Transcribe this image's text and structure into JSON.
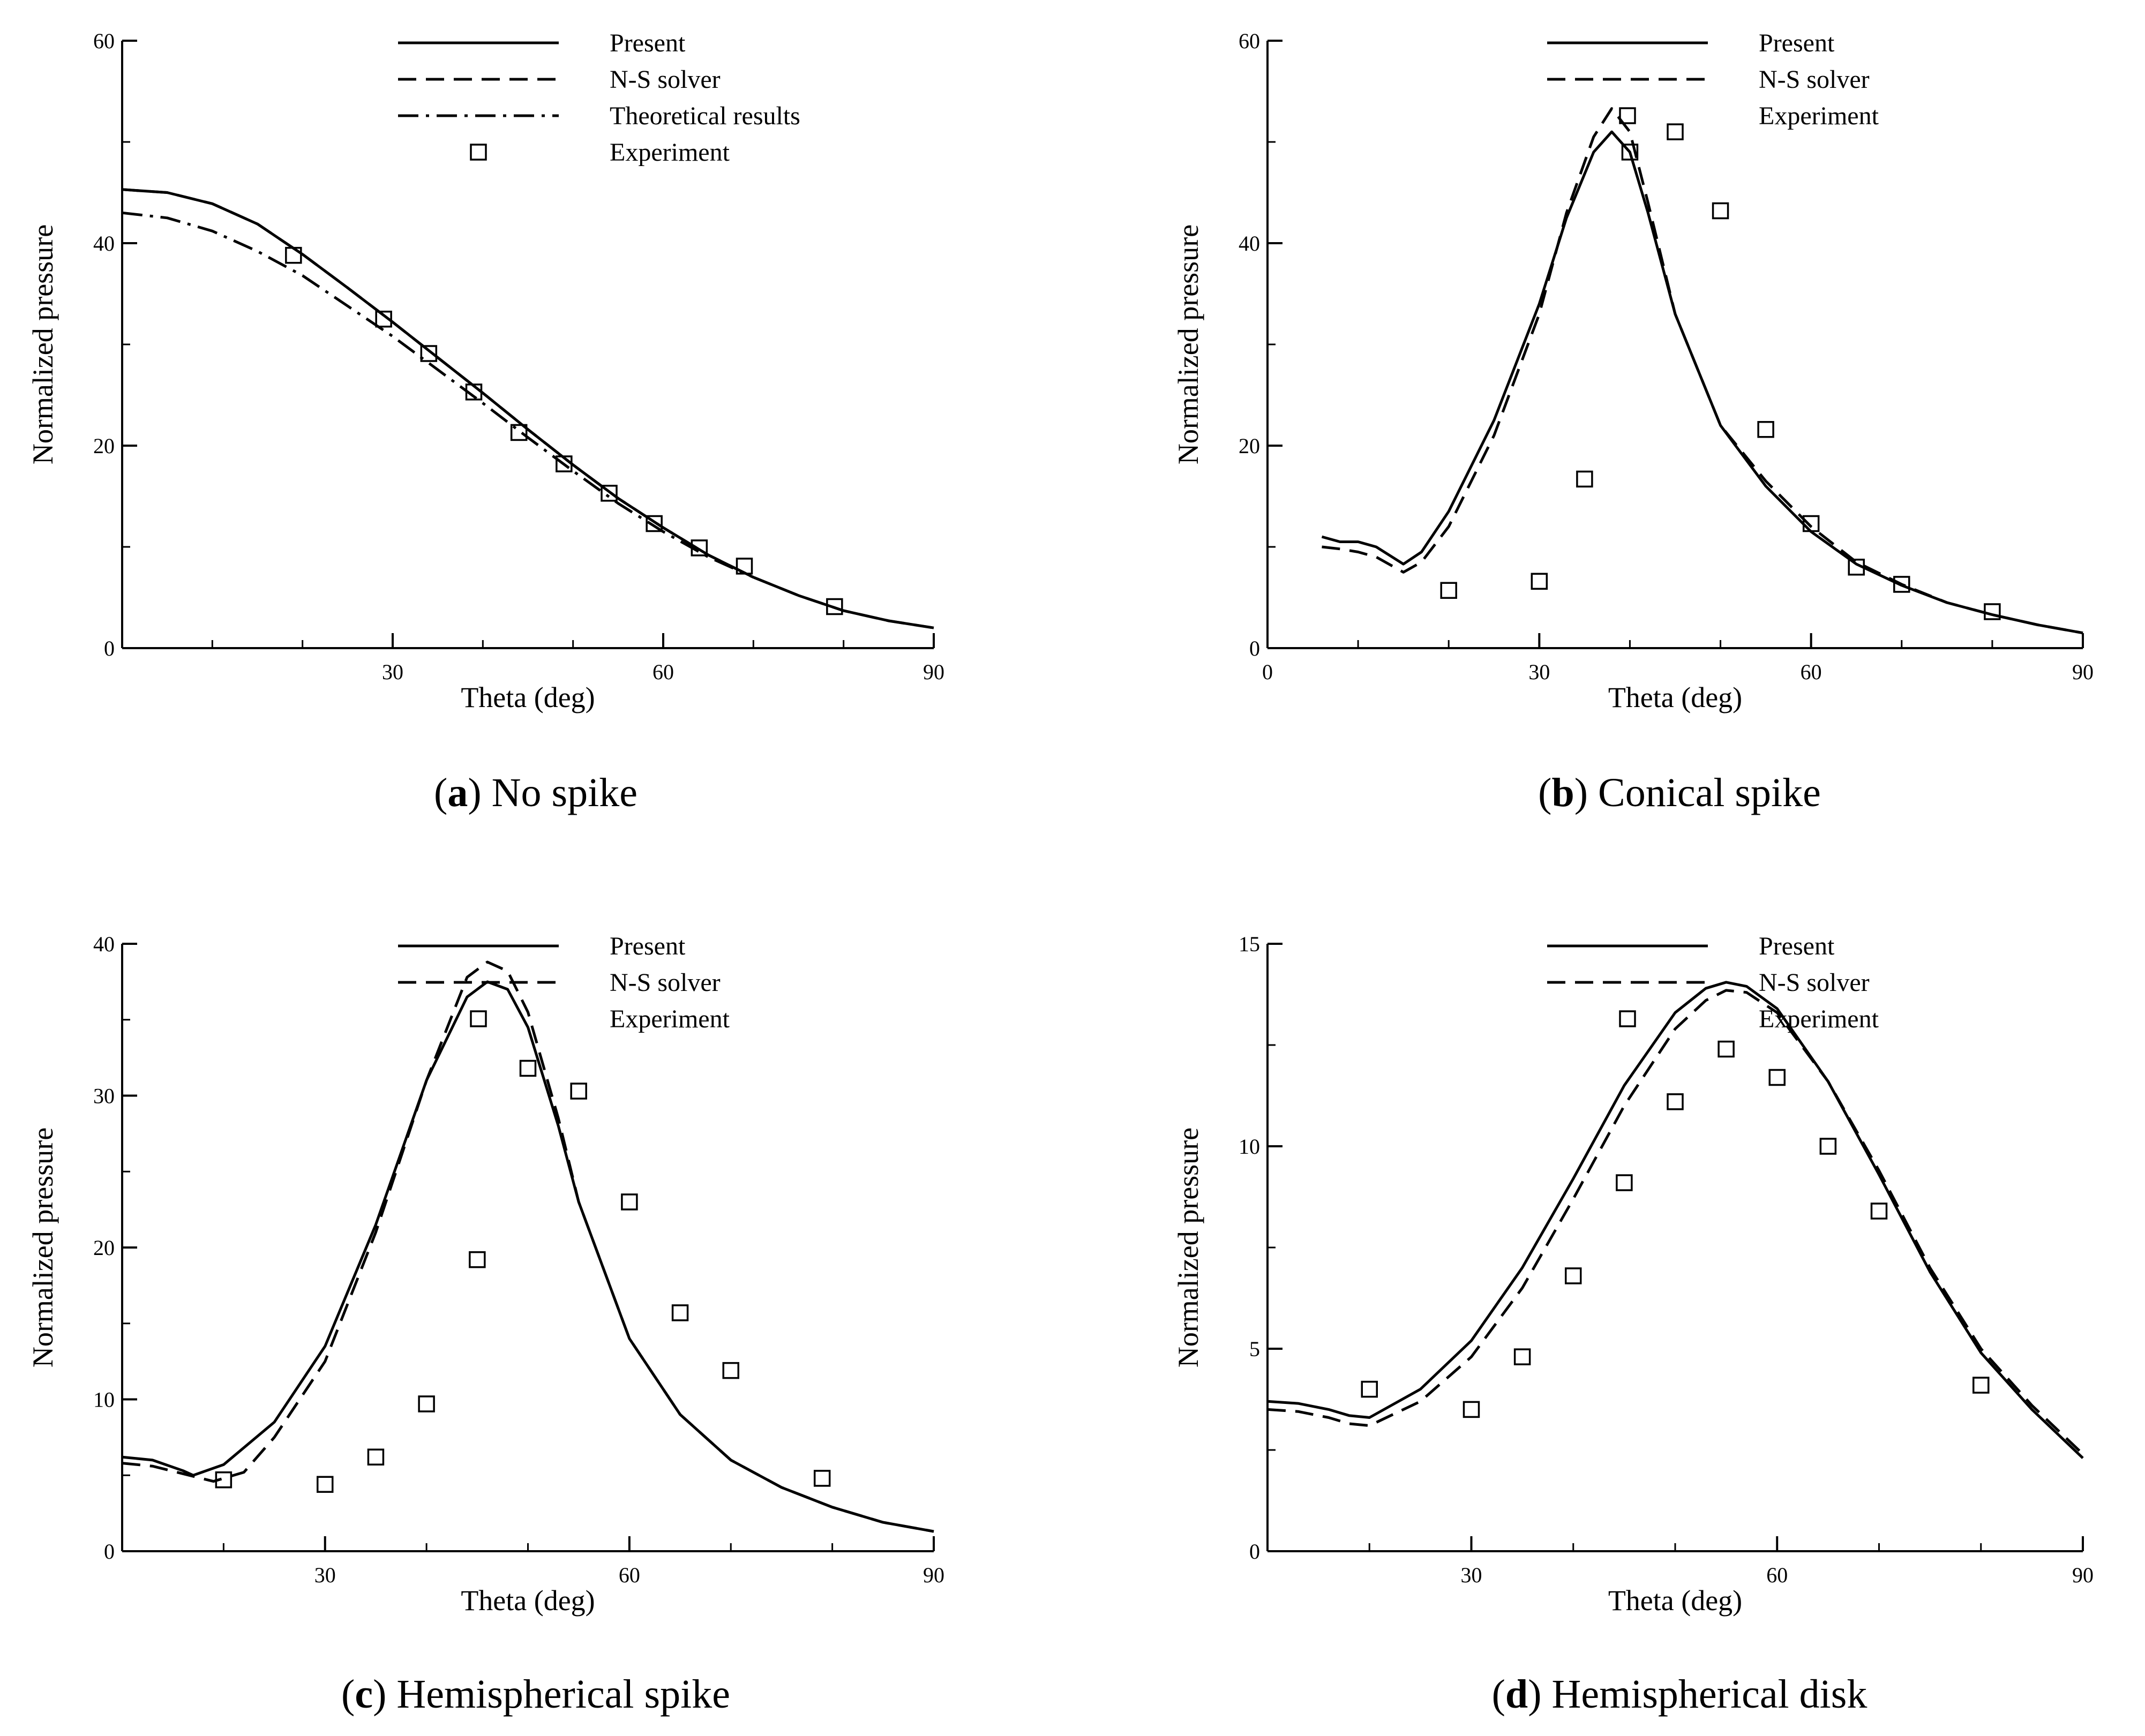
{
  "figure": {
    "colors": {
      "ink": "#000000",
      "background": "#ffffff"
    }
  },
  "chart_data": [
    {
      "id": "a",
      "type": "line",
      "caption": {
        "letter": "a",
        "text": "No spike"
      },
      "xlabel": "Theta (deg)",
      "ylabel": "Normalized pressure",
      "xlim": [
        0,
        90
      ],
      "ylim": [
        0,
        60
      ],
      "xticks": [
        30,
        60,
        90
      ],
      "yticks": [
        0,
        20,
        40,
        60
      ],
      "xminor": [
        10,
        20,
        40,
        50,
        70,
        80
      ],
      "yminor": [
        10,
        30,
        50
      ],
      "legend": [
        {
          "label": "Present",
          "style": "solid"
        },
        {
          "label": "N-S solver",
          "style": "dashed"
        },
        {
          "label": "Theoretical results",
          "style": "dashdot"
        },
        {
          "label": "Experiment",
          "style": "marker"
        }
      ],
      "series": [
        {
          "name": "Present",
          "style": "solid",
          "x": [
            0,
            5,
            10,
            15,
            20,
            25,
            30,
            35,
            40,
            45,
            50,
            55,
            60,
            65,
            70,
            75,
            80,
            85,
            90
          ],
          "y": [
            45.3,
            45.0,
            43.9,
            41.9,
            38.9,
            35.6,
            32.2,
            28.7,
            25.2,
            21.6,
            18.1,
            14.8,
            11.9,
            9.2,
            7.0,
            5.2,
            3.7,
            2.7,
            2.0
          ]
        },
        {
          "name": "N-S solver",
          "style": "dashed",
          "x": [
            0,
            5,
            10,
            15,
            20,
            25,
            30,
            35,
            40,
            45,
            50,
            55,
            60,
            65,
            70,
            75,
            80,
            85,
            90
          ],
          "y": [
            45.3,
            45.0,
            43.9,
            41.9,
            38.9,
            35.6,
            32.2,
            28.7,
            25.2,
            21.6,
            18.1,
            14.8,
            11.9,
            9.2,
            7.0,
            5.2,
            3.7,
            2.7,
            2.0
          ]
        },
        {
          "name": "Theoretical results",
          "style": "dashdot",
          "x": [
            0,
            5,
            10,
            15,
            20,
            25,
            30,
            35,
            40,
            45,
            50,
            55,
            60,
            65,
            70
          ],
          "y": [
            43.0,
            42.5,
            41.2,
            39.2,
            36.8,
            33.8,
            30.8,
            27.5,
            24.2,
            20.8,
            17.5,
            14.3,
            11.5,
            9.0,
            7.0
          ]
        }
      ],
      "markers": {
        "name": "Experiment",
        "x": [
          19,
          29,
          34,
          39,
          44,
          49,
          54,
          59,
          64,
          69,
          79
        ],
        "y": [
          38.8,
          32.5,
          29.1,
          25.3,
          21.3,
          18.2,
          15.3,
          12.3,
          9.9,
          8.1,
          4.1
        ]
      }
    },
    {
      "id": "b",
      "type": "line",
      "caption": {
        "letter": "b",
        "text": "Conical spike"
      },
      "xlabel": "Theta (deg)",
      "ylabel": "Normalized pressure",
      "xlim": [
        0,
        90
      ],
      "ylim": [
        0,
        60
      ],
      "xticks": [
        0,
        30,
        60,
        90
      ],
      "yticks": [
        0,
        20,
        40,
        60
      ],
      "xminor": [
        10,
        20,
        40,
        50,
        70,
        80
      ],
      "yminor": [
        10,
        30,
        50
      ],
      "legend": [
        {
          "label": "Present",
          "style": "solid"
        },
        {
          "label": "N-S solver",
          "style": "dashed"
        },
        {
          "label": "Experiment",
          "style": "marker"
        }
      ],
      "series": [
        {
          "name": "Present",
          "style": "solid",
          "x": [
            6,
            8,
            10,
            12,
            15,
            17,
            20,
            25,
            30,
            33,
            36,
            38,
            40,
            42,
            45,
            50,
            55,
            60,
            65,
            70,
            75,
            80,
            85,
            90
          ],
          "y": [
            11.0,
            10.5,
            10.5,
            10.0,
            8.3,
            9.5,
            13.5,
            22.5,
            34.0,
            42.5,
            49.0,
            51.0,
            49.0,
            43.0,
            33.0,
            22.0,
            16.0,
            11.5,
            8.3,
            6.2,
            4.5,
            3.3,
            2.3,
            1.5
          ]
        },
        {
          "name": "N-S solver",
          "style": "dashed",
          "x": [
            6,
            8,
            10,
            12,
            15,
            17,
            20,
            25,
            30,
            33,
            36,
            38,
            40,
            42,
            45,
            50,
            55,
            60,
            65,
            70,
            75,
            80,
            85,
            90
          ],
          "y": [
            10.0,
            9.8,
            9.5,
            9.0,
            7.5,
            8.5,
            12.0,
            21.0,
            33.0,
            43.0,
            50.5,
            53.3,
            51.0,
            44.0,
            33.0,
            22.0,
            16.5,
            12.0,
            8.5,
            6.3,
            4.5,
            3.3,
            2.3,
            1.5
          ]
        }
      ],
      "markers": {
        "name": "Experiment",
        "x": [
          20,
          30,
          35,
          40,
          45,
          50,
          55,
          60,
          65,
          70,
          80
        ],
        "y": [
          5.7,
          6.6,
          16.7,
          49.0,
          51.0,
          43.2,
          21.6,
          12.3,
          8.0,
          6.3,
          3.6
        ]
      }
    },
    {
      "id": "c",
      "type": "line",
      "caption": {
        "letter": "c",
        "text": "Hemispherical spike"
      },
      "xlabel": "Theta (deg)",
      "ylabel": "Normalized pressure",
      "xlim": [
        10,
        90
      ],
      "ylim": [
        0,
        40
      ],
      "xticks": [
        30,
        60,
        90
      ],
      "yticks": [
        0,
        10,
        20,
        30,
        40
      ],
      "xminor": [
        20,
        40,
        50,
        70,
        80
      ],
      "yminor": [
        5,
        15,
        25,
        35
      ],
      "legend": [
        {
          "label": "Present",
          "style": "solid"
        },
        {
          "label": "N-S solver",
          "style": "dashed"
        },
        {
          "label": "Experiment",
          "style": "marker"
        }
      ],
      "series": [
        {
          "name": "Present",
          "style": "solid",
          "x": [
            10,
            13,
            16,
            17,
            20,
            25,
            30,
            35,
            40,
            44,
            46,
            48,
            50,
            53,
            55,
            60,
            65,
            70,
            75,
            80,
            85,
            90
          ],
          "y": [
            6.2,
            6.0,
            5.3,
            5.0,
            5.7,
            8.5,
            13.5,
            21.5,
            31.0,
            36.5,
            37.5,
            37.0,
            34.5,
            28.0,
            23.0,
            14.0,
            9.0,
            6.0,
            4.2,
            2.9,
            1.9,
            1.3
          ]
        },
        {
          "name": "N-S solver",
          "style": "dashed",
          "x": [
            10,
            13,
            16,
            19,
            22,
            25,
            30,
            35,
            40,
            44,
            46,
            48,
            50,
            53,
            55,
            60,
            65,
            70,
            75,
            80,
            85,
            90
          ],
          "y": [
            5.8,
            5.6,
            5.1,
            4.6,
            5.2,
            7.5,
            12.5,
            21.0,
            31.0,
            37.8,
            38.8,
            38.2,
            35.5,
            28.5,
            23.0,
            14.0,
            9.0,
            6.0,
            4.2,
            2.9,
            1.9,
            1.3
          ]
        }
      ],
      "markers": {
        "name": "Experiment",
        "x": [
          20,
          30,
          35,
          40,
          45,
          50,
          55,
          60,
          65,
          70,
          79
        ],
        "y": [
          4.7,
          4.4,
          6.2,
          9.7,
          19.2,
          31.8,
          30.3,
          23.0,
          15.7,
          11.9,
          4.8
        ]
      }
    },
    {
      "id": "d",
      "type": "line",
      "caption": {
        "letter": "d",
        "text": "Hemispherical disk"
      },
      "xlabel": "Theta (deg)",
      "ylabel": "Normalized pressure",
      "xlim": [
        10,
        90
      ],
      "ylim": [
        0,
        15
      ],
      "xticks": [
        30,
        60,
        90
      ],
      "yticks": [
        0,
        5,
        10,
        15
      ],
      "xminor": [
        20,
        40,
        50,
        70,
        80
      ],
      "yminor": [
        2.5,
        7.5,
        12.5
      ],
      "legend": [
        {
          "label": "Present",
          "style": "solid"
        },
        {
          "label": "N-S solver",
          "style": "dashed"
        },
        {
          "label": "Experiment",
          "style": "marker"
        }
      ],
      "series": [
        {
          "name": "Present",
          "style": "solid",
          "x": [
            10,
            13,
            16,
            18,
            20,
            25,
            30,
            35,
            40,
            45,
            50,
            53,
            55,
            57,
            60,
            65,
            70,
            75,
            80,
            85,
            90
          ],
          "y": [
            3.7,
            3.65,
            3.5,
            3.35,
            3.3,
            4.0,
            5.2,
            7.0,
            9.2,
            11.5,
            13.3,
            13.9,
            14.05,
            13.95,
            13.4,
            11.6,
            9.3,
            6.9,
            4.9,
            3.5,
            2.3
          ]
        },
        {
          "name": "N-S solver",
          "style": "dashed",
          "x": [
            10,
            13,
            16,
            18,
            20,
            25,
            30,
            35,
            40,
            45,
            50,
            53,
            55,
            57,
            60,
            65,
            70,
            75,
            80,
            85,
            90
          ],
          "y": [
            3.5,
            3.45,
            3.3,
            3.15,
            3.1,
            3.7,
            4.8,
            6.5,
            8.7,
            11.0,
            12.9,
            13.6,
            13.85,
            13.8,
            13.3,
            11.6,
            9.4,
            7.0,
            5.0,
            3.6,
            2.4
          ]
        }
      ],
      "markers": {
        "name": "Experiment",
        "x": [
          20,
          30,
          35,
          40,
          45,
          50,
          55,
          60,
          65,
          70,
          80
        ],
        "y": [
          4.0,
          3.5,
          4.8,
          6.8,
          9.1,
          11.1,
          12.4,
          11.7,
          10.0,
          8.4,
          4.1
        ]
      }
    }
  ]
}
